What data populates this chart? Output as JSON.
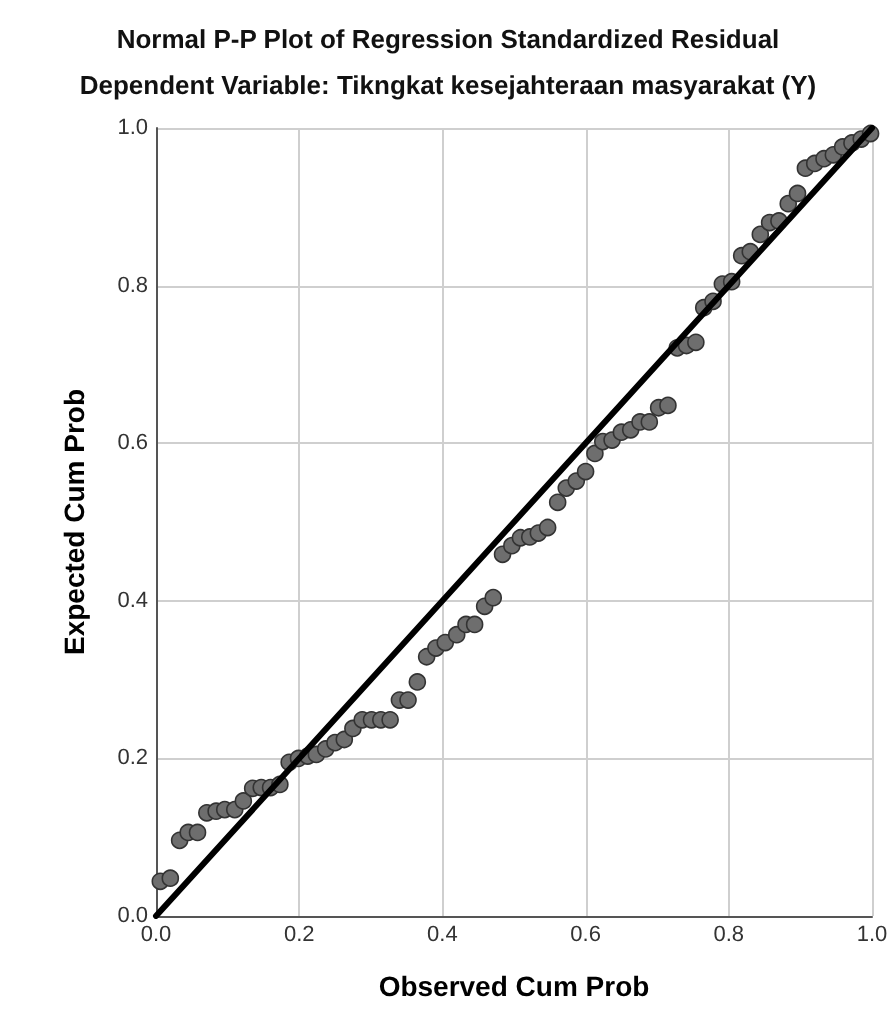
{
  "chart_data": {
    "type": "scatter",
    "title": "Normal P-P Plot of Regression Standardized Residual",
    "subtitle": "Dependent Variable: Tikngkat kesejahteraan masyarakat (Y)",
    "xlabel": "Observed Cum Prob",
    "ylabel": "Expected Cum Prob",
    "xlim": [
      0,
      1
    ],
    "ylim": [
      0,
      1
    ],
    "xticks": [
      {
        "value": 0,
        "label": "0.0"
      },
      {
        "value": 0.2,
        "label": "0.2"
      },
      {
        "value": 0.4,
        "label": "0.4"
      },
      {
        "value": 0.6,
        "label": "0.6"
      },
      {
        "value": 0.8,
        "label": "0.8"
      },
      {
        "value": 1,
        "label": "1.0"
      }
    ],
    "yticks": [
      {
        "value": 0,
        "label": "0.0"
      },
      {
        "value": 0.2,
        "label": "0.2"
      },
      {
        "value": 0.4,
        "label": "0.4"
      },
      {
        "value": 0.6,
        "label": "0.6"
      },
      {
        "value": 0.8,
        "label": "0.8"
      },
      {
        "value": 1,
        "label": "1.0"
      }
    ],
    "grid": true,
    "marker": "circle",
    "series": [
      {
        "color": "#6e6e6e",
        "x": [
          0.006,
          0.02,
          0.033,
          0.045,
          0.058,
          0.071,
          0.084,
          0.096,
          0.11,
          0.122,
          0.135,
          0.147,
          0.16,
          0.173,
          0.186,
          0.199,
          0.212,
          0.224,
          0.237,
          0.25,
          0.263,
          0.275,
          0.288,
          0.301,
          0.314,
          0.327,
          0.34,
          0.352,
          0.365,
          0.378,
          0.391,
          0.404,
          0.42,
          0.433,
          0.445,
          0.459,
          0.471,
          0.484,
          0.497,
          0.509,
          0.522,
          0.534,
          0.547,
          0.561,
          0.573,
          0.587,
          0.6,
          0.613,
          0.624,
          0.637,
          0.65,
          0.663,
          0.676,
          0.689,
          0.702,
          0.715,
          0.728,
          0.741,
          0.754,
          0.765,
          0.778,
          0.791,
          0.804,
          0.818,
          0.83,
          0.844,
          0.857,
          0.87,
          0.883,
          0.896,
          0.907,
          0.92,
          0.933,
          0.946,
          0.959,
          0.972,
          0.985,
          0.998
        ],
        "values": [
          0.044,
          0.048,
          0.096,
          0.106,
          0.106,
          0.131,
          0.133,
          0.135,
          0.135,
          0.146,
          0.162,
          0.163,
          0.163,
          0.167,
          0.195,
          0.2,
          0.203,
          0.205,
          0.212,
          0.22,
          0.224,
          0.238,
          0.249,
          0.249,
          0.249,
          0.249,
          0.274,
          0.274,
          0.297,
          0.329,
          0.34,
          0.347,
          0.357,
          0.37,
          0.37,
          0.393,
          0.404,
          0.459,
          0.47,
          0.48,
          0.481,
          0.486,
          0.493,
          0.525,
          0.543,
          0.552,
          0.564,
          0.587,
          0.602,
          0.604,
          0.614,
          0.617,
          0.627,
          0.627,
          0.645,
          0.648,
          0.721,
          0.724,
          0.728,
          0.772,
          0.78,
          0.802,
          0.805,
          0.838,
          0.843,
          0.865,
          0.88,
          0.882,
          0.904,
          0.917,
          0.949,
          0.955,
          0.961,
          0.966,
          0.976,
          0.981,
          0.986,
          0.993
        ]
      },
      {
        "type": "line",
        "color": "#000000",
        "x": [
          0,
          1
        ],
        "values": [
          0,
          1
        ],
        "marker": "none",
        "line_style": "solid"
      }
    ]
  }
}
